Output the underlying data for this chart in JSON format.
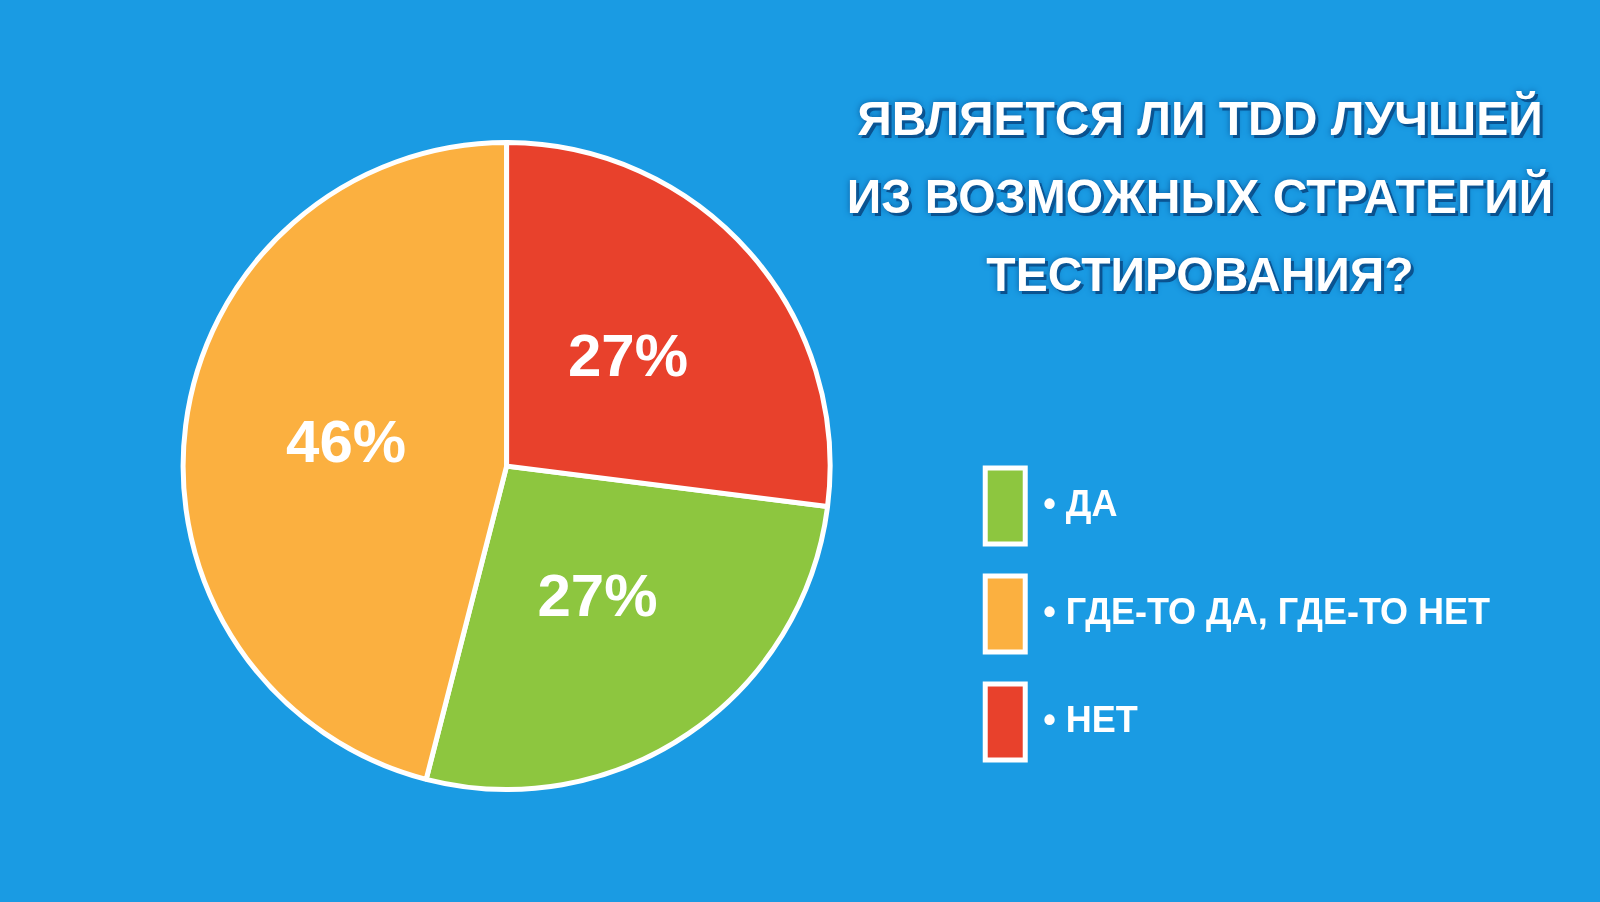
{
  "chart_data": {
    "type": "pie",
    "title": "ЯВЛЯЕТСЯ ЛИ TDD ЛУЧШЕЙ ИЗ ВОЗМОЖНЫХ СТРАТЕГИЙ ТЕСТИРОВАНИЯ?",
    "categories": [
      "• ДА",
      "• ГДЕ-ТО ДА, ГДЕ-ТО НЕТ",
      "• НЕТ"
    ],
    "values": [
      27,
      46,
      27
    ],
    "colors": [
      "#8dc63f",
      "#fbb040",
      "#e8412c"
    ],
    "value_labels": [
      "27%",
      "46%",
      "27%"
    ],
    "legend": "right"
  }
}
